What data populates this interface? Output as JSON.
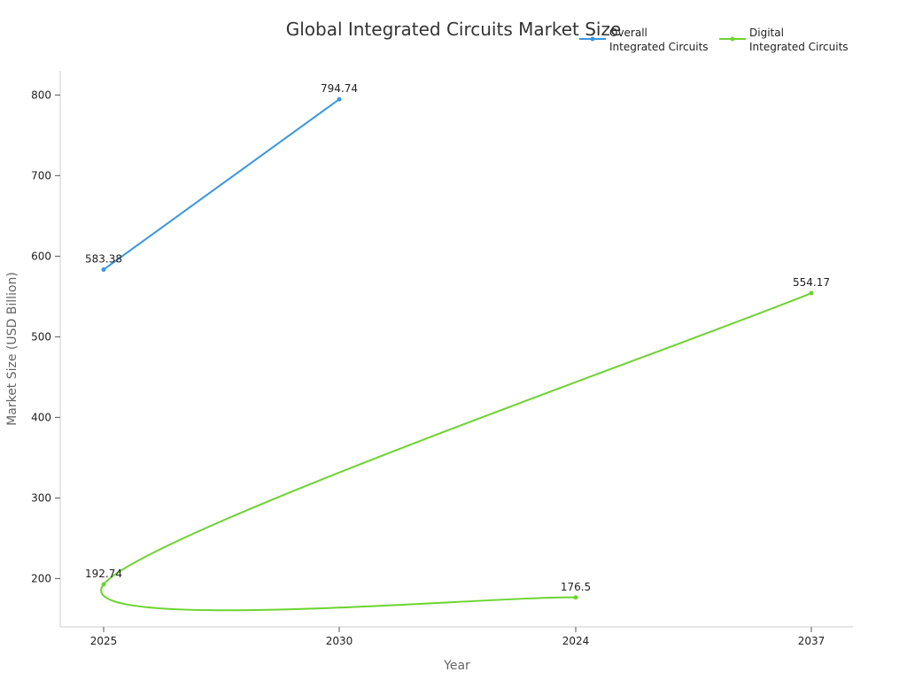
{
  "chart_data": {
    "type": "line",
    "title": "Global Integrated Circuits Market Size",
    "xlabel": "Year",
    "ylabel": "Market Size (USD Billion)",
    "categories": [
      "2025",
      "2030",
      "2024",
      "2037"
    ],
    "ylim": [
      140,
      830
    ],
    "yticks": [
      200,
      300,
      400,
      500,
      600,
      700,
      800
    ],
    "grid": false,
    "legend_position": "top-right",
    "series": [
      {
        "name": "Overall\nIntegrated Circuits",
        "name_lines": [
          "Overall",
          "Integrated Circuits"
        ],
        "color": "#3b96e0",
        "points": [
          {
            "x": "2025",
            "y": 583.38,
            "label": "583.38"
          },
          {
            "x": "2030",
            "y": 794.74,
            "label": "794.74"
          }
        ]
      },
      {
        "name": "Digital\nIntegrated Circuits",
        "name_lines": [
          "Digital",
          "Integrated Circuits"
        ],
        "color": "#6bd42f",
        "points": [
          {
            "x": "2024",
            "y": 176.5,
            "label": "176.5"
          },
          {
            "x": "2025",
            "y": 192.74,
            "label": "192.74"
          },
          {
            "x": "2037",
            "y": 554.17,
            "label": "554.17"
          }
        ]
      }
    ]
  }
}
